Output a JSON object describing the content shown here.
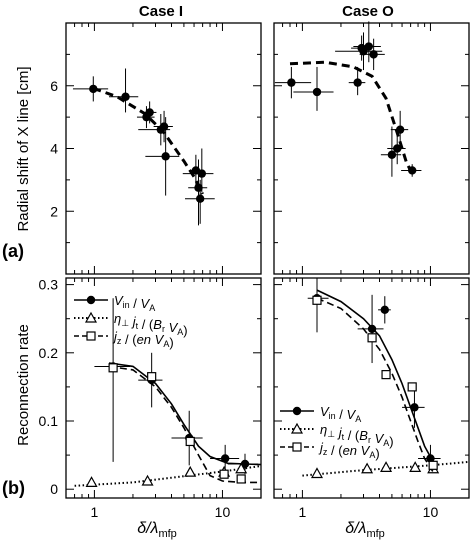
{
  "figure": {
    "col_titles": [
      "Case I",
      "Case O"
    ],
    "row_labels": [
      "(a)",
      "(b)"
    ],
    "ylabel_a": "Radial shift of X line [cm]",
    "ylabel_b": "Reconnection rate",
    "xlabel": "δ/λmfp",
    "xlabel_main": "δ/λ",
    "xlabel_sub": "mfp",
    "legend": [
      {
        "key": "vin",
        "text": "Vin / VA"
      },
      {
        "key": "eta",
        "text": "η⊥ jt / (Br VA)"
      },
      {
        "key": "jz",
        "text": "jz / (en VA)"
      }
    ]
  },
  "chart_data": [
    {
      "id": "a-I",
      "type": "scatter",
      "title": "Case I",
      "ylabel": "Radial shift of X line [cm]",
      "xlabel": "δ/λmfp",
      "xscale": "log",
      "xlim": [
        0.6,
        20
      ],
      "ylim": [
        0,
        8
      ],
      "xticks": [
        1,
        10
      ],
      "yticks": [
        2,
        4,
        6
      ],
      "series": [
        {
          "marker": "filled-circle",
          "points": [
            {
              "x": 0.98,
              "y": 5.9,
              "xerr": [
                0.3,
                0.3
              ],
              "yerr": [
                0.4,
                0.4
              ]
            },
            {
              "x": 1.75,
              "y": 5.65,
              "xerr": [
                0.45,
                0.45
              ],
              "yerr": [
                0.5,
                0.9
              ]
            },
            {
              "x": 2.55,
              "y": 5.0,
              "xerr": [
                0.4,
                0.4
              ],
              "yerr": [
                0.35,
                0.35
              ]
            },
            {
              "x": 2.7,
              "y": 5.15,
              "xerr": [
                0.35,
                0.35
              ],
              "yerr": [
                0.35,
                0.35
              ]
            },
            {
              "x": 3.3,
              "y": 4.6,
              "xerr": [
                1.1,
                0.6
              ],
              "yerr": [
                0.5,
                0.5
              ]
            },
            {
              "x": 3.5,
              "y": 4.7,
              "xerr": [
                0.6,
                0.6
              ],
              "yerr": [
                0.5,
                0.5
              ]
            },
            {
              "x": 3.6,
              "y": 3.75,
              "xerr": [
                1.1,
                1.0
              ],
              "yerr": [
                1.25,
                1.25
              ]
            },
            {
              "x": 6.2,
              "y": 3.3,
              "xerr": [
                0.7,
                0.7
              ],
              "yerr": [
                0.5,
                0.5
              ]
            },
            {
              "x": 6.5,
              "y": 2.75,
              "xerr": [
                1.1,
                1.1
              ],
              "yerr": [
                1.2,
                0.9
              ]
            },
            {
              "x": 6.9,
              "y": 3.2,
              "xerr": [
                2.0,
                1.6
              ],
              "yerr": [
                0.6,
                0.8
              ]
            },
            {
              "x": 6.7,
              "y": 2.4,
              "xerr": [
                1.6,
                2.0
              ],
              "yerr": [
                0.8,
                0.6
              ]
            }
          ]
        }
      ],
      "fit": {
        "style": "dashed",
        "points": [
          [
            0.98,
            5.92
          ],
          [
            1.5,
            5.65
          ],
          [
            2.5,
            5.1
          ],
          [
            3.5,
            4.5
          ],
          [
            5.0,
            3.6
          ],
          [
            6.0,
            3.1
          ],
          [
            7.0,
            2.55
          ]
        ]
      }
    },
    {
      "id": "a-O",
      "type": "scatter",
      "title": "Case O",
      "xscale": "log",
      "xlim": [
        0.6,
        20
      ],
      "ylim": [
        0,
        8
      ],
      "xticks": [
        1,
        10
      ],
      "yticks": [
        2,
        4,
        6
      ],
      "series": [
        {
          "marker": "filled-circle",
          "points": [
            {
              "x": 0.82,
              "y": 6.1,
              "xerr": [
                0.3,
                0.35
              ],
              "yerr": [
                0.5,
                0.5
              ]
            },
            {
              "x": 1.3,
              "y": 5.8,
              "xerr": [
                0.45,
                0.45
              ],
              "yerr": [
                0.6,
                0.8
              ]
            },
            {
              "x": 2.7,
              "y": 6.1,
              "xerr": [
                0.4,
                0.4
              ],
              "yerr": [
                0.4,
                0.5
              ]
            },
            {
              "x": 2.9,
              "y": 7.2,
              "xerr": [
                0.5,
                0.5
              ],
              "yerr": [
                0.4,
                0.4
              ]
            },
            {
              "x": 3.0,
              "y": 7.1,
              "xerr": [
                1.2,
                1.2
              ],
              "yerr": [
                0.6,
                0.6
              ]
            },
            {
              "x": 3.3,
              "y": 7.25,
              "xerr": [
                0.8,
                0.8
              ],
              "yerr": [
                0.5,
                0.8
              ]
            },
            {
              "x": 3.6,
              "y": 7.0,
              "xerr": [
                0.8,
                0.8
              ],
              "yerr": [
                0.5,
                0.5
              ]
            },
            {
              "x": 5.0,
              "y": 3.8,
              "xerr": [
                0.9,
                0.9
              ],
              "yerr": [
                0.7,
                0.9
              ]
            },
            {
              "x": 5.5,
              "y": 4.0,
              "xerr": [
                0.9,
                0.9
              ],
              "yerr": [
                0.5,
                0.5
              ]
            },
            {
              "x": 5.8,
              "y": 4.6,
              "xerr": [
                0.9,
                0.9
              ],
              "yerr": [
                0.6,
                0.6
              ]
            },
            {
              "x": 7.2,
              "y": 3.3,
              "xerr": [
                1.3,
                1.3
              ],
              "yerr": [
                0.2,
                0.2
              ]
            }
          ]
        }
      ],
      "fit": {
        "style": "dashed",
        "points": [
          [
            0.8,
            6.7
          ],
          [
            1.5,
            6.75
          ],
          [
            2.5,
            6.6
          ],
          [
            3.5,
            6.3
          ],
          [
            4.5,
            5.6
          ],
          [
            5.5,
            4.5
          ],
          [
            6.5,
            3.55
          ],
          [
            7.2,
            3.2
          ]
        ]
      }
    },
    {
      "id": "b-I",
      "type": "scatter",
      "xscale": "log",
      "xlim": [
        0.6,
        20
      ],
      "ylim": [
        0,
        0.3
      ],
      "xticks": [
        1,
        10
      ],
      "yticks": [
        0,
        0.1,
        0.2,
        0.3
      ],
      "xlabel": "δ/λmfp",
      "series": [
        {
          "name": "Vin / VA",
          "marker": "filled-circle",
          "line": "solid",
          "points": [
            {
              "x": 1.4,
              "y": 0.18,
              "xerr": [
                0.4,
                0.5
              ],
              "yerr": [
                0.14,
                0.1
              ]
            },
            {
              "x": 2.8,
              "y": 0.16,
              "xerr": [
                0.6,
                0.6
              ],
              "yerr": [
                0.04,
                0.04
              ]
            },
            {
              "x": 5.5,
              "y": 0.075,
              "xerr": [
                1.5,
                1.5
              ],
              "yerr": [
                0.04,
                0.04
              ]
            },
            {
              "x": 10.5,
              "y": 0.045,
              "xerr": [
                2.5,
                3.0
              ],
              "yerr": [
                0.02,
                0.02
              ]
            },
            {
              "x": 15.0,
              "y": 0.037,
              "xerr": [
                4.0,
                4.0
              ],
              "yerr": [
                0.015,
                0.015
              ]
            }
          ],
          "curve": [
            [
              1.3,
              0.185
            ],
            [
              2.0,
              0.18
            ],
            [
              3.0,
              0.155
            ],
            [
              4.0,
              0.125
            ],
            [
              5.0,
              0.095
            ],
            [
              6.5,
              0.063
            ],
            [
              8.0,
              0.048
            ],
            [
              11.0,
              0.038
            ],
            [
              20.0,
              0.036
            ]
          ]
        },
        {
          "name": "η⊥ jt / (Br VA)",
          "marker": "open-triangle",
          "line": "dotted",
          "points": [
            {
              "x": 0.95,
              "y": 0.01
            },
            {
              "x": 2.6,
              "y": 0.012
            },
            {
              "x": 5.6,
              "y": 0.025
            },
            {
              "x": 10.3,
              "y": 0.025
            },
            {
              "x": 14.0,
              "y": 0.03
            }
          ],
          "curve": [
            [
              0.7,
              0.005
            ],
            [
              2.0,
              0.01
            ],
            [
              5.0,
              0.019
            ],
            [
              10.0,
              0.026
            ],
            [
              20.0,
              0.034
            ]
          ]
        },
        {
          "name": "jz / (en VA)",
          "marker": "open-square",
          "line": "dashed",
          "points": [
            {
              "x": 1.4,
              "y": 0.178
            },
            {
              "x": 2.8,
              "y": 0.165
            },
            {
              "x": 5.6,
              "y": 0.07
            },
            {
              "x": 10.3,
              "y": 0.022
            },
            {
              "x": 14.0,
              "y": 0.015
            }
          ],
          "curve": [
            [
              1.3,
              0.18
            ],
            [
              2.0,
              0.175
            ],
            [
              3.0,
              0.15
            ],
            [
              4.0,
              0.12
            ],
            [
              5.0,
              0.09
            ],
            [
              6.5,
              0.05
            ],
            [
              8.0,
              0.02
            ],
            [
              10.0,
              0.012
            ],
            [
              14.0,
              0.01
            ],
            [
              20.0,
              0.01
            ]
          ]
        }
      ]
    },
    {
      "id": "b-O",
      "type": "scatter",
      "xscale": "log",
      "xlim": [
        0.6,
        20
      ],
      "ylim": [
        0,
        0.3
      ],
      "xticks": [
        1,
        10
      ],
      "yticks": [
        0,
        0.1,
        0.2,
        0.3
      ],
      "xlabel": "δ/λmfp",
      "series": [
        {
          "name": "Vin / VA",
          "marker": "filled-circle",
          "line": "solid",
          "points": [
            {
              "x": 1.3,
              "y": 0.28,
              "xerr": [
                0.2,
                0.3
              ],
              "yerr": [
                0.05,
                0.03
              ]
            },
            {
              "x": 3.5,
              "y": 0.235,
              "xerr": [
                0.8,
                0.8
              ],
              "yerr": [
                0.05,
                0.05
              ]
            },
            {
              "x": 4.4,
              "y": 0.263,
              "xerr": [
                0.5,
                0.5
              ],
              "yerr": [
                0.02,
                0.02
              ]
            },
            {
              "x": 7.5,
              "y": 0.12,
              "xerr": [
                1.5,
                1.5
              ],
              "yerr": [
                0.03,
                0.03
              ]
            },
            {
              "x": 10.0,
              "y": 0.045,
              "xerr": [
                2.0,
                2.0
              ],
              "yerr": [
                0.02,
                0.02
              ]
            }
          ],
          "curve": [
            [
              1.3,
              0.292
            ],
            [
              2.0,
              0.275
            ],
            [
              3.0,
              0.25
            ],
            [
              4.0,
              0.225
            ],
            [
              5.0,
              0.19
            ],
            [
              6.0,
              0.155
            ],
            [
              7.0,
              0.12
            ],
            [
              8.0,
              0.09
            ],
            [
              9.0,
              0.063
            ],
            [
              10.5,
              0.04
            ]
          ]
        },
        {
          "name": "η⊥ jt / (Br VA)",
          "marker": "open-triangle",
          "line": "dotted",
          "points": [
            {
              "x": 1.3,
              "y": 0.023
            },
            {
              "x": 3.2,
              "y": 0.03
            },
            {
              "x": 4.5,
              "y": 0.032
            },
            {
              "x": 7.6,
              "y": 0.032
            },
            {
              "x": 10.5,
              "y": 0.03
            }
          ],
          "curve": [
            [
              1.0,
              0.02
            ],
            [
              3.0,
              0.028
            ],
            [
              6.0,
              0.032
            ],
            [
              10.0,
              0.035
            ],
            [
              20.0,
              0.04
            ]
          ]
        },
        {
          "name": "jz / (en VA)",
          "marker": "open-square",
          "line": "dashed",
          "points": [
            {
              "x": 1.3,
              "y": 0.277
            },
            {
              "x": 3.5,
              "y": 0.222
            },
            {
              "x": 4.5,
              "y": 0.168
            },
            {
              "x": 7.2,
              "y": 0.15
            },
            {
              "x": 10.5,
              "y": 0.035
            }
          ],
          "curve": [
            [
              1.3,
              0.28
            ],
            [
              2.0,
              0.265
            ],
            [
              3.0,
              0.235
            ],
            [
              4.0,
              0.205
            ],
            [
              5.0,
              0.17
            ],
            [
              6.0,
              0.135
            ],
            [
              7.0,
              0.1
            ],
            [
              8.0,
              0.07
            ],
            [
              9.0,
              0.045
            ],
            [
              10.5,
              0.025
            ]
          ]
        }
      ]
    }
  ]
}
